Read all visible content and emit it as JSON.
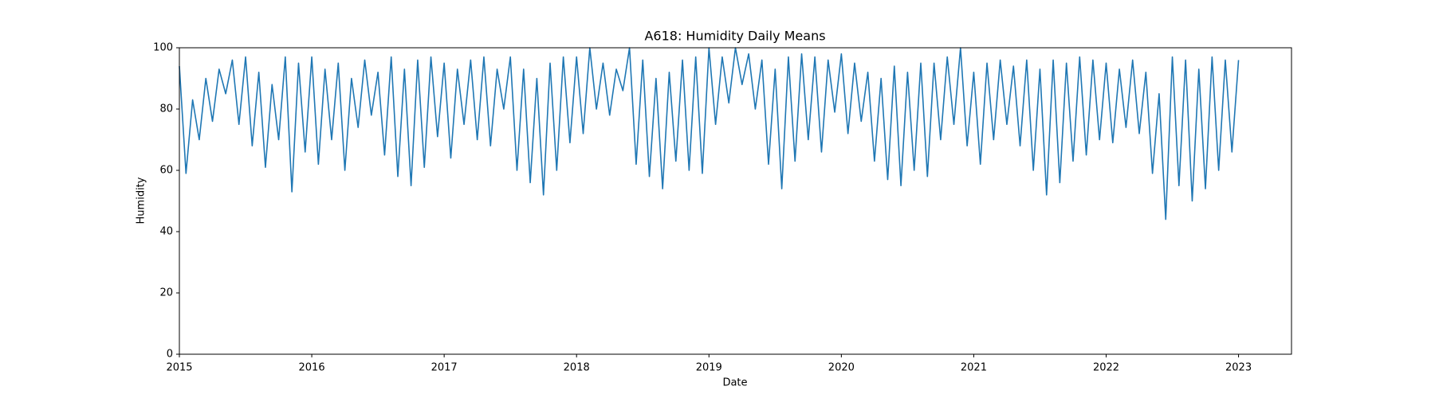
{
  "chart_data": {
    "type": "line",
    "title": "A618: Humidity Daily Means",
    "x_label": "Date",
    "y_label": "Humidity",
    "x": [
      2015,
      2015.05,
      2015.1,
      2015.15,
      2015.2,
      2015.25,
      2015.3,
      2015.35,
      2015.4,
      2015.45,
      2015.5,
      2015.55,
      2015.6,
      2015.65,
      2015.7,
      2015.75,
      2015.8,
      2015.85,
      2015.9,
      2015.95,
      2016,
      2016.05,
      2016.1,
      2016.15,
      2016.2,
      2016.25,
      2016.3,
      2016.35,
      2016.4,
      2016.45,
      2016.5,
      2016.55,
      2016.6,
      2016.65,
      2016.7,
      2016.75,
      2016.8,
      2016.85,
      2016.9,
      2016.95,
      2017,
      2017.05,
      2017.1,
      2017.15,
      2017.2,
      2017.25,
      2017.3,
      2017.35,
      2017.4,
      2017.45,
      2017.5,
      2017.55,
      2017.6,
      2017.65,
      2017.7,
      2017.75,
      2017.8,
      2017.85,
      2017.9,
      2017.95,
      2018,
      2018.05,
      2018.1,
      2018.15,
      2018.2,
      2018.25,
      2018.3,
      2018.35,
      2018.4,
      2018.45,
      2018.5,
      2018.55,
      2018.6,
      2018.65,
      2018.7,
      2018.75,
      2018.8,
      2018.85,
      2018.9,
      2018.95,
      2019,
      2019.05,
      2019.1,
      2019.15,
      2019.2,
      2019.25,
      2019.3,
      2019.35,
      2019.4,
      2019.45,
      2019.5,
      2019.55,
      2019.6,
      2019.65,
      2019.7,
      2019.75,
      2019.8,
      2019.85,
      2019.9,
      2019.95,
      2020,
      2020.05,
      2020.1,
      2020.15,
      2020.2,
      2020.25,
      2020.3,
      2020.35,
      2020.4,
      2020.45,
      2020.5,
      2020.55,
      2020.6,
      2020.65,
      2020.7,
      2020.75,
      2020.8,
      2020.85,
      2020.9,
      2020.95,
      2021,
      2021.05,
      2021.1,
      2021.15,
      2021.2,
      2021.25,
      2021.3,
      2021.35,
      2021.4,
      2021.45,
      2021.5,
      2021.55,
      2021.6,
      2021.65,
      2021.7,
      2021.75,
      2021.8,
      2021.85,
      2021.9,
      2021.95,
      2022,
      2022.05,
      2022.1,
      2022.15,
      2022.2,
      2022.25,
      2022.3,
      2022.35,
      2022.4,
      2022.45,
      2022.5,
      2022.55,
      2022.6,
      2022.65,
      2022.7,
      2022.75,
      2022.8,
      2022.85,
      2022.9,
      2022.95,
      2023
    ],
    "series": [
      {
        "name": "Humidity",
        "color": "#1f77b4",
        "values": [
          94,
          59,
          83,
          70,
          90,
          76,
          93,
          85,
          96,
          75,
          97,
          68,
          92,
          61,
          88,
          70,
          97,
          53,
          95,
          66,
          97,
          62,
          93,
          70,
          95,
          60,
          90,
          74,
          96,
          78,
          92,
          65,
          97,
          58,
          93,
          55,
          96,
          61,
          97,
          71,
          95,
          64,
          93,
          75,
          96,
          70,
          97,
          68,
          93,
          80,
          97,
          60,
          93,
          56,
          90,
          52,
          95,
          60,
          97,
          69,
          97,
          72,
          100,
          80,
          95,
          78,
          93,
          86,
          100,
          62,
          96,
          58,
          90,
          54,
          92,
          63,
          96,
          60,
          97,
          59,
          100,
          75,
          97,
          82,
          100,
          88,
          98,
          80,
          96,
          62,
          93,
          54,
          97,
          63,
          98,
          70,
          97,
          66,
          96,
          79,
          98,
          72,
          95,
          76,
          92,
          63,
          90,
          57,
          94,
          55,
          92,
          60,
          95,
          58,
          95,
          70,
          97,
          75,
          100,
          68,
          92,
          62,
          95,
          70,
          96,
          75,
          94,
          68,
          96,
          60,
          93,
          52,
          96,
          56,
          95,
          63,
          97,
          65,
          96,
          70,
          95,
          69,
          93,
          74,
          96,
          72,
          92,
          59,
          85,
          44,
          97,
          55,
          96,
          50,
          93,
          54,
          97,
          60,
          96,
          66,
          96
        ]
      }
    ],
    "xlim": [
      2015,
      2023.4
    ],
    "xticks": [
      2015,
      2016,
      2017,
      2018,
      2019,
      2020,
      2021,
      2022,
      2023
    ],
    "ylim": [
      0,
      100
    ],
    "yticks": [
      0,
      20,
      40,
      60,
      80,
      100
    ],
    "grid": false
  }
}
